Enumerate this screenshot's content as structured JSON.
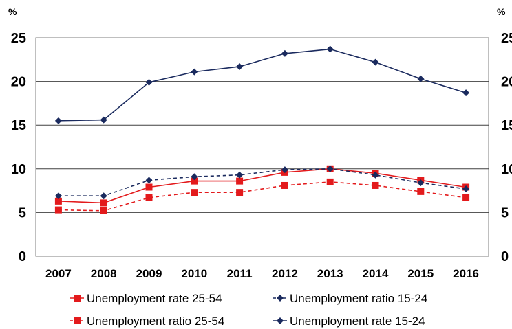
{
  "chart_data": {
    "type": "line",
    "y_unit_label_left": "%",
    "y_unit_label_right": "%",
    "x": [
      "2007",
      "2008",
      "2009",
      "2010",
      "2011",
      "2012",
      "2013",
      "2014",
      "2015",
      "2016"
    ],
    "ylim": [
      0,
      25
    ],
    "yticks": [
      0,
      5,
      10,
      15,
      20,
      25
    ],
    "ytick_labels": [
      "0",
      "5",
      "10",
      "15",
      "20",
      "25"
    ],
    "grid": true,
    "legend_position": "bottom",
    "series": [
      {
        "name": "Unemployment rate 25-54",
        "color": "#e31a1c",
        "line": "solid",
        "marker": "square",
        "values": [
          6.3,
          6.1,
          7.9,
          8.6,
          8.6,
          9.6,
          10.0,
          9.5,
          8.7,
          7.9
        ]
      },
      {
        "name": "Unemployment ratio 15-24",
        "color": "#1a2a5e",
        "line": "dashed",
        "marker": "diamond",
        "values": [
          6.9,
          6.9,
          8.7,
          9.1,
          9.3,
          9.9,
          10.0,
          9.3,
          8.4,
          7.7
        ]
      },
      {
        "name": "Unemployment ratio 25-54",
        "color": "#e31a1c",
        "line": "dashed",
        "marker": "square",
        "values": [
          5.3,
          5.2,
          6.7,
          7.3,
          7.3,
          8.1,
          8.5,
          8.1,
          7.4,
          6.7
        ]
      },
      {
        "name": "Unemployment rate 15-24",
        "color": "#1a2a5e",
        "line": "solid",
        "marker": "diamond",
        "values": [
          15.5,
          15.6,
          19.9,
          21.1,
          21.7,
          23.2,
          23.7,
          22.2,
          20.3,
          18.7
        ]
      }
    ]
  }
}
